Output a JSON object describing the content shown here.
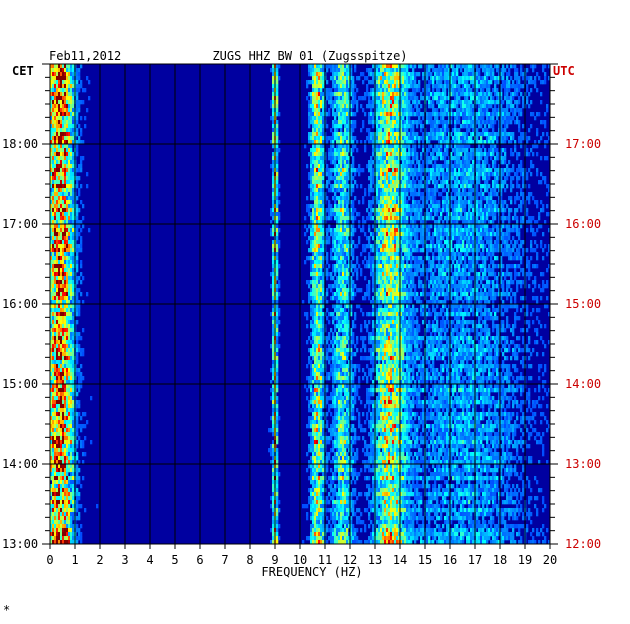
{
  "chart_data": {
    "type": "heatmap",
    "date": "Feb11,2012",
    "title": "ZUGS HHZ BW 01 (Zugsspitze)",
    "left_axis_label": "CET",
    "right_axis_label": "UTC",
    "xlabel": "FREQUENCY (HZ)",
    "xlim": [
      0,
      20
    ],
    "x_ticks": [
      "0",
      "1",
      "2",
      "3",
      "4",
      "5",
      "6",
      "7",
      "8",
      "9",
      "10",
      "11",
      "12",
      "13",
      "14",
      "15",
      "16",
      "17",
      "18",
      "19",
      "20"
    ],
    "left_time_ticks": [
      "18:00",
      "17:00",
      "16:00",
      "15:00",
      "14:00",
      "13:00"
    ],
    "right_time_ticks": [
      "17:00",
      "16:00",
      "15:00",
      "14:00",
      "13:00",
      "12:00"
    ],
    "time_range_cet": [
      "13:00",
      "19:00"
    ],
    "grid": true,
    "colormap": "jet",
    "energy_bands_hz": [
      {
        "center": 0.4,
        "width": 0.5,
        "strength": 0.85
      },
      {
        "center": 9.0,
        "width": 0.1,
        "strength": 0.55
      },
      {
        "center": 10.7,
        "width": 0.25,
        "strength": 0.5
      },
      {
        "center": 11.7,
        "width": 0.4,
        "strength": 0.35
      },
      {
        "center": 13.6,
        "width": 0.6,
        "strength": 0.5
      },
      {
        "center": 16.5,
        "width": 2.5,
        "strength": 0.18
      }
    ],
    "colors": {
      "background": "#0000a0",
      "grid": "#000000",
      "utc_labels": "#cc0000"
    }
  },
  "footer_mark": "*"
}
